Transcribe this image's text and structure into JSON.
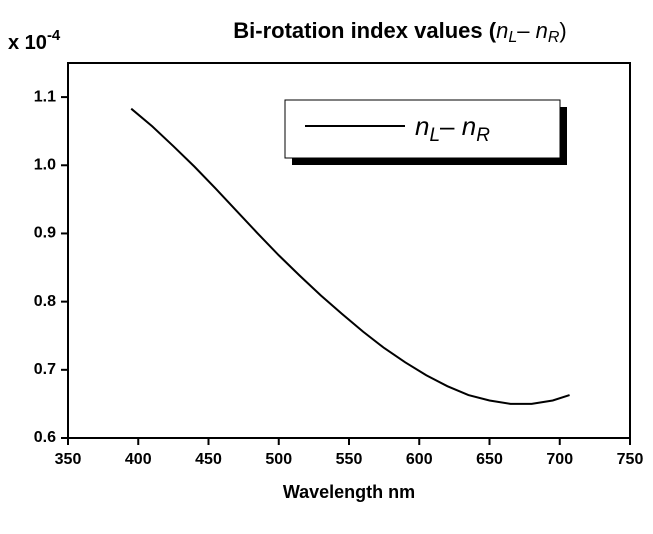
{
  "chart_data": {
    "type": "line",
    "title_parts": [
      "Bi-rotation index values (",
      "n",
      "L",
      "– ",
      "n",
      "R",
      ")"
    ],
    "y_scale_parts": [
      "x 10",
      "-4"
    ],
    "x_label": "Wavelength nm",
    "x": [
      395,
      410,
      425,
      440,
      455,
      470,
      485,
      500,
      515,
      530,
      545,
      560,
      575,
      590,
      605,
      620,
      635,
      650,
      665,
      680,
      695,
      707
    ],
    "series": [
      {
        "name_parts": [
          "n",
          "L",
          "– ",
          "n",
          "R"
        ],
        "color": "#000000",
        "values": [
          1.083,
          1.057,
          1.028,
          0.998,
          0.966,
          0.933,
          0.9,
          0.868,
          0.838,
          0.809,
          0.782,
          0.756,
          0.732,
          0.711,
          0.692,
          0.676,
          0.663,
          0.655,
          0.65,
          0.65,
          0.655,
          0.663
        ]
      }
    ],
    "xlim": [
      350,
      750
    ],
    "xticks": [
      350,
      400,
      450,
      500,
      550,
      600,
      650,
      700,
      750
    ],
    "ylim": [
      0.6,
      1.15
    ],
    "yticks": [
      0.6,
      0.7,
      0.8,
      0.9,
      {
        "value": 1,
        "label": "1.0"
      },
      1.1
    ],
    "legend": "upper right",
    "grid": false
  }
}
